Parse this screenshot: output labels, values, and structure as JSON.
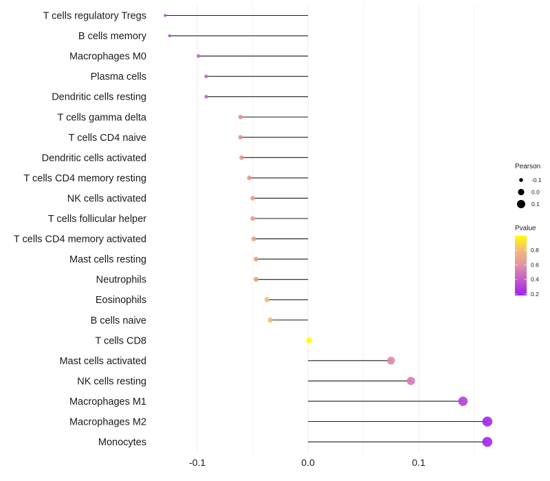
{
  "chart_data": {
    "type": "lollipop",
    "title": "",
    "xlabel": "",
    "ylabel": "",
    "xlim": [
      -0.1375,
      0.1775
    ],
    "xticks": [
      -0.1,
      0.0,
      0.1
    ],
    "xtick_labels": [
      "-0.1",
      "0.0",
      "0.1"
    ],
    "grid": true,
    "categories": [
      "T cells regulatory  Tregs",
      "B cells memory",
      "Macrophages M0",
      "Plasma cells",
      "Dendritic cells resting",
      "T cells gamma delta",
      "T cells CD4 naive",
      "Dendritic cells activated",
      "T cells CD4 memory resting",
      "NK cells activated",
      "T cells follicular helper",
      "T cells CD4 memory activated",
      "Mast cells resting",
      "Neutrophils",
      "Eosinophils",
      "B cells naive",
      "T cells CD8",
      "Mast cells activated",
      "NK cells resting",
      "Macrophages M1",
      "Macrophages M2",
      "Monocytes"
    ],
    "values": [
      -0.129,
      -0.125,
      -0.099,
      -0.092,
      -0.092,
      -0.061,
      -0.061,
      -0.06,
      -0.053,
      -0.05,
      -0.05,
      -0.049,
      -0.047,
      -0.047,
      -0.037,
      -0.034,
      0.001,
      0.075,
      0.093,
      0.14,
      0.162,
      0.162
    ],
    "pvalues": [
      0.3,
      0.29,
      0.4,
      0.42,
      0.42,
      0.6,
      0.6,
      0.6,
      0.63,
      0.65,
      0.65,
      0.65,
      0.66,
      0.66,
      0.75,
      0.77,
      0.99,
      0.55,
      0.5,
      0.3,
      0.2,
      0.2
    ],
    "legend": {
      "position": "right",
      "size": {
        "title": "Pearson",
        "labels": [
          "-0.1",
          "0.0",
          "0.1"
        ],
        "values": [
          -0.1,
          0.0,
          0.1
        ]
      },
      "color": {
        "title": "Pvalue",
        "labels": [
          "0.8",
          "0.6",
          "0.4",
          "0.2"
        ],
        "values": [
          0.8,
          0.6,
          0.4,
          0.2
        ],
        "range": [
          0.18,
          1.0
        ],
        "low_color": "#a020f0",
        "mid_color": "#e8889a",
        "high_color": "#ffff00"
      }
    }
  }
}
